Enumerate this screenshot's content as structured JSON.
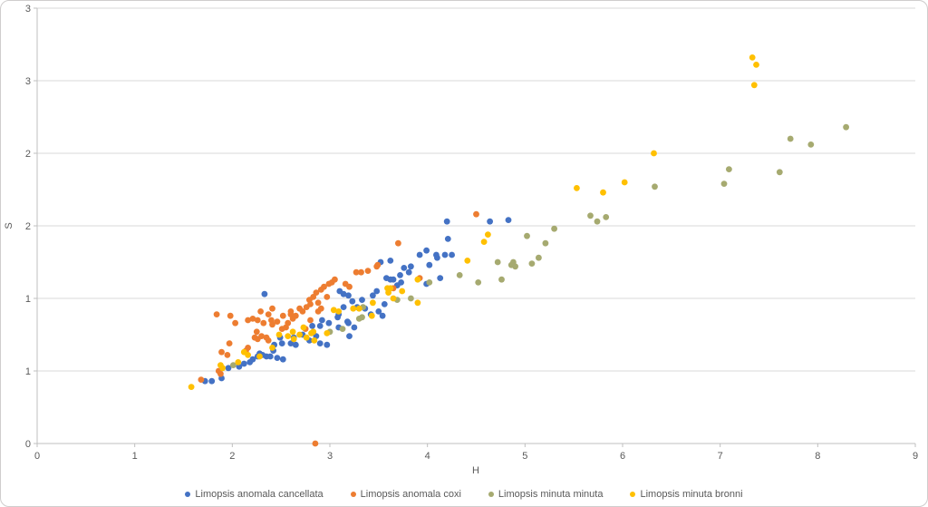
{
  "chart_data": {
    "type": "scatter",
    "title": "",
    "xlabel": "H",
    "ylabel": "S",
    "xlim": [
      0,
      9
    ],
    "ylim": [
      0,
      3
    ],
    "grid": "horizontal",
    "legend_position": "bottom",
    "x_ticks": [
      0,
      1,
      2,
      3,
      4,
      5,
      6,
      7,
      8,
      9
    ],
    "y_axis": {
      "values": [
        0,
        0.5,
        1,
        1.5,
        2,
        2.5,
        3
      ],
      "labels": [
        "0",
        "1",
        "1",
        "2",
        "2",
        "3",
        "3"
      ]
    },
    "series": [
      {
        "name": "Limopsis anomala cancellata",
        "color": "#4472C4",
        "points": [
          [
            1.72,
            0.43
          ],
          [
            1.79,
            0.43
          ],
          [
            1.89,
            0.45
          ],
          [
            1.96,
            0.52
          ],
          [
            2.07,
            0.53
          ],
          [
            2.12,
            0.55
          ],
          [
            2.18,
            0.56
          ],
          [
            2.21,
            0.58
          ],
          [
            2.26,
            0.6
          ],
          [
            2.28,
            0.62
          ],
          [
            2.31,
            0.61
          ],
          [
            2.33,
            1.03
          ],
          [
            2.35,
            0.6
          ],
          [
            2.39,
            0.6
          ],
          [
            2.42,
            0.64
          ],
          [
            2.43,
            0.68
          ],
          [
            2.46,
            0.59
          ],
          [
            2.49,
            0.73
          ],
          [
            2.51,
            0.69
          ],
          [
            2.52,
            0.58
          ],
          [
            2.6,
            0.69
          ],
          [
            2.63,
            0.73
          ],
          [
            2.65,
            0.68
          ],
          [
            2.72,
            0.75
          ],
          [
            2.79,
            0.71
          ],
          [
            2.82,
            0.81
          ],
          [
            2.86,
            0.74
          ],
          [
            2.9,
            0.69
          ],
          [
            2.9,
            0.81
          ],
          [
            2.92,
            0.85
          ],
          [
            2.97,
            0.68
          ],
          [
            2.99,
            0.83
          ],
          [
            3.08,
            0.87
          ],
          [
            3.09,
            0.8
          ],
          [
            3.09,
            0.89
          ],
          [
            3.1,
            1.05
          ],
          [
            3.14,
            0.94
          ],
          [
            3.14,
            1.03
          ],
          [
            3.18,
            0.84
          ],
          [
            3.19,
            0.83
          ],
          [
            3.19,
            1.02
          ],
          [
            3.2,
            0.74
          ],
          [
            3.23,
            0.98
          ],
          [
            3.25,
            0.8
          ],
          [
            3.28,
            0.94
          ],
          [
            3.33,
            0.99
          ],
          [
            3.36,
            0.93
          ],
          [
            3.42,
            0.89
          ],
          [
            3.44,
            1.02
          ],
          [
            3.48,
            1.05
          ],
          [
            3.5,
            0.91
          ],
          [
            3.52,
            1.25
          ],
          [
            3.54,
            0.88
          ],
          [
            3.56,
            0.96
          ],
          [
            3.58,
            1.14
          ],
          [
            3.62,
            1.13
          ],
          [
            3.62,
            1.26
          ],
          [
            3.65,
            1.13
          ],
          [
            3.69,
            1.09
          ],
          [
            3.72,
            1.16
          ],
          [
            3.73,
            1.11
          ],
          [
            3.76,
            1.21
          ],
          [
            3.81,
            1.18
          ],
          [
            3.83,
            1.22
          ],
          [
            3.92,
            1.3
          ],
          [
            3.99,
            1.1
          ],
          [
            3.99,
            1.33
          ],
          [
            4.02,
            1.23
          ],
          [
            4.09,
            1.3
          ],
          [
            4.1,
            1.28
          ],
          [
            4.13,
            1.14
          ],
          [
            4.18,
            1.3
          ],
          [
            4.2,
            1.53
          ],
          [
            4.21,
            1.41
          ],
          [
            4.25,
            1.3
          ],
          [
            4.64,
            1.53
          ],
          [
            4.83,
            1.54
          ]
        ]
      },
      {
        "name": "Limopsis anomala coxi",
        "color": "#ED7D31",
        "points": [
          [
            1.68,
            0.44
          ],
          [
            1.84,
            0.89
          ],
          [
            1.86,
            0.5
          ],
          [
            1.88,
            0.48
          ],
          [
            1.89,
            0.63
          ],
          [
            1.95,
            0.61
          ],
          [
            1.97,
            0.69
          ],
          [
            1.98,
            0.88
          ],
          [
            2.03,
            0.83
          ],
          [
            2.14,
            0.64
          ],
          [
            2.16,
            0.66
          ],
          [
            2.16,
            0.85
          ],
          [
            2.21,
            0.86
          ],
          [
            2.23,
            0.73
          ],
          [
            2.25,
            0.77
          ],
          [
            2.26,
            0.72
          ],
          [
            2.26,
            0.85
          ],
          [
            2.29,
            0.91
          ],
          [
            2.3,
            0.74
          ],
          [
            2.32,
            0.83
          ],
          [
            2.35,
            0.73
          ],
          [
            2.37,
            0.71
          ],
          [
            2.37,
            0.89
          ],
          [
            2.4,
            0.85
          ],
          [
            2.41,
            0.82
          ],
          [
            2.41,
            0.93
          ],
          [
            2.46,
            0.84
          ],
          [
            2.51,
            0.79
          ],
          [
            2.52,
            0.88
          ],
          [
            2.55,
            0.8
          ],
          [
            2.57,
            0.83
          ],
          [
            2.6,
            0.89
          ],
          [
            2.6,
            0.91
          ],
          [
            2.62,
            0.86
          ],
          [
            2.65,
            0.88
          ],
          [
            2.69,
            0.93
          ],
          [
            2.72,
            0.91
          ],
          [
            2.75,
            0.79
          ],
          [
            2.76,
            0.94
          ],
          [
            2.79,
            0.99
          ],
          [
            2.8,
            0.85
          ],
          [
            2.8,
            0.96
          ],
          [
            2.83,
            1.01
          ],
          [
            2.85,
            0.0
          ],
          [
            2.86,
            1.04
          ],
          [
            2.88,
            0.91
          ],
          [
            2.88,
            0.97
          ],
          [
            2.91,
            0.93
          ],
          [
            2.91,
            1.06
          ],
          [
            2.94,
            1.08
          ],
          [
            2.97,
            1.01
          ],
          [
            2.99,
            1.1
          ],
          [
            3.02,
            1.11
          ],
          [
            3.05,
            1.13
          ],
          [
            3.16,
            1.1
          ],
          [
            3.2,
            1.08
          ],
          [
            3.27,
            1.18
          ],
          [
            3.32,
            1.18
          ],
          [
            3.39,
            1.19
          ],
          [
            3.48,
            1.22
          ],
          [
            3.49,
            1.23
          ],
          [
            3.65,
            1.07
          ],
          [
            3.7,
            1.38
          ],
          [
            3.92,
            1.14
          ],
          [
            4.5,
            1.58
          ]
        ]
      },
      {
        "name": "Limopsis minuta minuta",
        "color": "#A6AA70",
        "points": [
          [
            2.01,
            0.54
          ],
          [
            3.0,
            0.77
          ],
          [
            3.13,
            0.79
          ],
          [
            3.3,
            0.86
          ],
          [
            3.33,
            0.87
          ],
          [
            3.34,
            0.94
          ],
          [
            3.69,
            0.99
          ],
          [
            3.83,
            1.0
          ],
          [
            4.02,
            1.11
          ],
          [
            4.33,
            1.16
          ],
          [
            4.52,
            1.11
          ],
          [
            4.72,
            1.25
          ],
          [
            4.76,
            1.13
          ],
          [
            4.86,
            1.23
          ],
          [
            4.88,
            1.25
          ],
          [
            4.9,
            1.22
          ],
          [
            5.02,
            1.43
          ],
          [
            5.07,
            1.24
          ],
          [
            5.14,
            1.28
          ],
          [
            5.21,
            1.38
          ],
          [
            5.3,
            1.48
          ],
          [
            5.67,
            1.57
          ],
          [
            5.74,
            1.53
          ],
          [
            5.83,
            1.56
          ],
          [
            6.33,
            1.77
          ],
          [
            7.04,
            1.79
          ],
          [
            7.09,
            1.89
          ],
          [
            7.61,
            1.87
          ],
          [
            7.72,
            2.1
          ],
          [
            7.93,
            2.06
          ],
          [
            8.29,
            2.18
          ]
        ]
      },
      {
        "name": "Limopsis minuta bronni",
        "color": "#FFC000",
        "points": [
          [
            1.58,
            0.39
          ],
          [
            1.88,
            0.54
          ],
          [
            1.9,
            0.52
          ],
          [
            2.06,
            0.56
          ],
          [
            2.12,
            0.63
          ],
          [
            2.16,
            0.61
          ],
          [
            2.28,
            0.6
          ],
          [
            2.41,
            0.66
          ],
          [
            2.48,
            0.75
          ],
          [
            2.57,
            0.74
          ],
          [
            2.62,
            0.77
          ],
          [
            2.63,
            0.72
          ],
          [
            2.69,
            0.75
          ],
          [
            2.73,
            0.8
          ],
          [
            2.76,
            0.73
          ],
          [
            2.81,
            0.76
          ],
          [
            2.83,
            0.77
          ],
          [
            2.84,
            0.71
          ],
          [
            2.97,
            0.76
          ],
          [
            3.04,
            0.92
          ],
          [
            3.09,
            0.91
          ],
          [
            3.24,
            0.93
          ],
          [
            3.3,
            0.93
          ],
          [
            3.43,
            0.88
          ],
          [
            3.44,
            0.97
          ],
          [
            3.59,
            1.07
          ],
          [
            3.6,
            1.04
          ],
          [
            3.62,
            1.07
          ],
          [
            3.65,
            1.0
          ],
          [
            3.74,
            1.05
          ],
          [
            3.9,
            0.97
          ],
          [
            3.9,
            1.13
          ],
          [
            4.41,
            1.26
          ],
          [
            4.58,
            1.39
          ],
          [
            4.62,
            1.44
          ],
          [
            5.53,
            1.76
          ],
          [
            5.8,
            1.73
          ],
          [
            6.02,
            1.8
          ],
          [
            6.32,
            2.0
          ],
          [
            7.33,
            2.66
          ],
          [
            7.35,
            2.47
          ],
          [
            7.37,
            2.61
          ]
        ]
      }
    ]
  }
}
